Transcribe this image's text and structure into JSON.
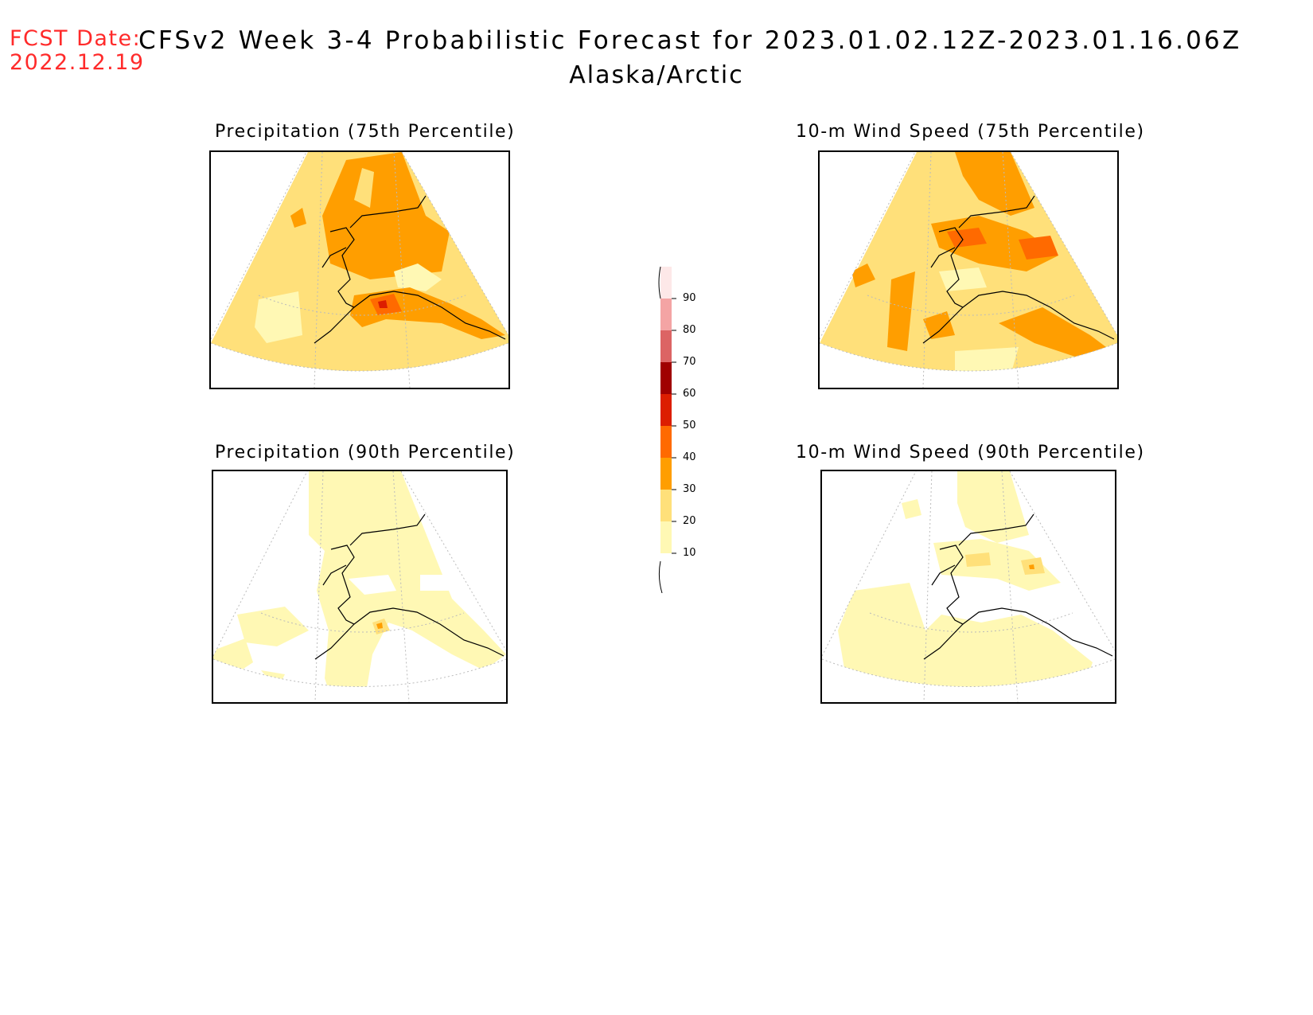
{
  "header": {
    "fcst_date_label": "FCST Date:",
    "fcst_date_value": "2022.12.19",
    "title": "CFSv2 Week 3-4 Probabilistic Forecast for 2023.01.02.12Z-2023.01.16.06Z",
    "region": "Alaska/Arctic"
  },
  "panels": [
    {
      "id": "precip-75",
      "title": "Precipitation (75th Percentile)"
    },
    {
      "id": "wind-75",
      "title": "10-m Wind Speed (75th Percentile)"
    },
    {
      "id": "precip-90",
      "title": "Precipitation (90th Percentile)"
    },
    {
      "id": "wind-90",
      "title": "10-m Wind Speed (90th Percentile)"
    }
  ],
  "colorbar": {
    "levels": [
      "90",
      "80",
      "70",
      "60",
      "50",
      "40",
      "30",
      "20",
      "10"
    ],
    "colors": [
      "#fde8e8",
      "#f4a4a4",
      "#dc6464",
      "#a00000",
      "#dc1e00",
      "#ff6a00",
      "#ff9e00",
      "#ffe07a",
      "#fff8b4"
    ]
  },
  "palette": {
    "level_10": "#fff8b4",
    "level_20": "#ffe07a",
    "level_30": "#ff9e00",
    "level_40": "#ff6a00",
    "level_50": "#dc1e00"
  }
}
